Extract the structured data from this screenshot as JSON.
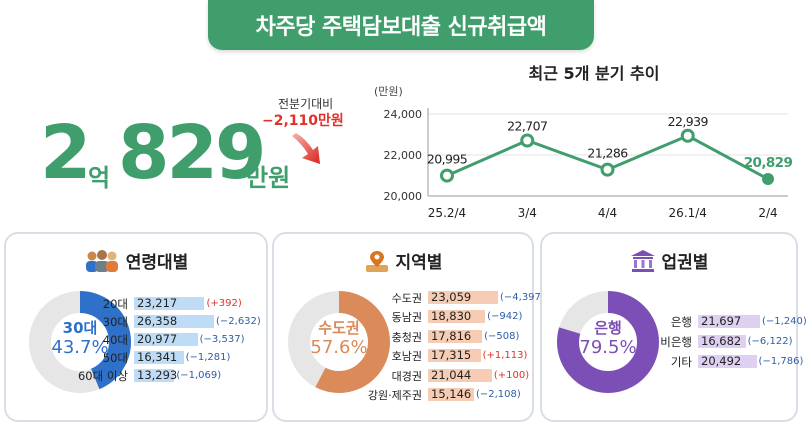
{
  "header": {
    "title": "차주당 주택담보대출 신규취급액"
  },
  "headline": {
    "digit1": "2",
    "unit1": "억",
    "digits": "829",
    "unit2": "만원"
  },
  "change": {
    "label": "전분기대비",
    "value": "−2,110만원"
  },
  "trend": {
    "title": "최근 5개 분기 추이",
    "unit": "(만원)",
    "value_labels": [
      "20,995",
      "22,707",
      "21,286",
      "22,939",
      "20,829"
    ],
    "ytick_labels": [
      "24,000",
      "22,000",
      "20,000"
    ]
  },
  "colors": {
    "green": "#3f9e6c",
    "red": "#e0312a",
    "blue": "#2f71c9",
    "orange": "#db8a5a",
    "purple": "#7b4fb6"
  },
  "chart_data": [
    {
      "type": "line",
      "title": "최근 5개 분기 추이",
      "ylabel": "(만원)",
      "categories": [
        "25.2/4",
        "3/4",
        "4/4",
        "26.1/4",
        "2/4"
      ],
      "values": [
        20995,
        22707,
        21286,
        22939,
        20829
      ],
      "ylim": [
        20000,
        24000
      ],
      "yticks": [
        20000,
        22000,
        24000
      ],
      "grid": true
    },
    {
      "type": "bar",
      "title": "연령대별",
      "categories": [
        "20대",
        "30대",
        "40대",
        "50대",
        "60대 이상"
      ],
      "values": [
        23217,
        26358,
        20977,
        16341,
        13293
      ],
      "value_labels": [
        "23,217",
        "26,358",
        "20,977",
        "16,341",
        "13,293"
      ],
      "changes": [
        "(+392)",
        "(−2,632)",
        "(−3,537)",
        "(−1,281)",
        "(−1,069)"
      ],
      "donut": {
        "name": "30대",
        "percent": 43.7,
        "percent_label": "43.7%"
      }
    },
    {
      "type": "bar",
      "title": "지역별",
      "categories": [
        "수도권",
        "동남권",
        "충청권",
        "호남권",
        "대경권",
        "강원·제주권"
      ],
      "values": [
        23059,
        18830,
        17816,
        17315,
        21044,
        15146
      ],
      "value_labels": [
        "23,059",
        "18,830",
        "17,816",
        "17,315",
        "21,044",
        "15,146"
      ],
      "changes": [
        "(−4,397)",
        "(−942)",
        "(−508)",
        "(+1,113)",
        "(+100)",
        "(−2,108)"
      ],
      "donut": {
        "name": "수도권",
        "percent": 57.6,
        "percent_label": "57.6%"
      }
    },
    {
      "type": "bar",
      "title": "업권별",
      "categories": [
        "은행",
        "비은행",
        "기타"
      ],
      "values": [
        21697,
        16682,
        20492
      ],
      "value_labels": [
        "21,697",
        "16,682",
        "20,492"
      ],
      "changes": [
        "(−1,240)",
        "(−6,122)",
        "(−1,786)"
      ],
      "donut": {
        "name": "은행",
        "percent": 79.5,
        "percent_label": "79.5%"
      }
    }
  ]
}
